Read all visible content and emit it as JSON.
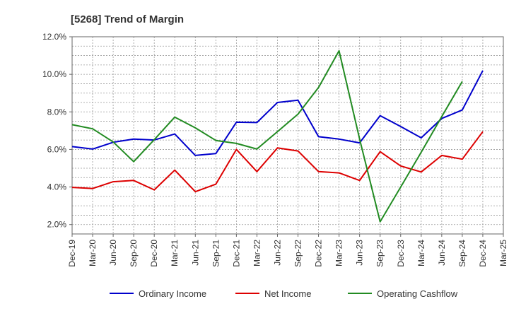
{
  "chart_data": {
    "type": "line",
    "title": "[5268]  Trend of Margin",
    "xlabel": "",
    "ylabel": "",
    "categories": [
      "Dec-19",
      "Mar-20",
      "Jun-20",
      "Sep-20",
      "Dec-20",
      "Mar-21",
      "Jun-21",
      "Sep-21",
      "Dec-21",
      "Mar-22",
      "Jun-22",
      "Sep-22",
      "Dec-22",
      "Mar-23",
      "Jun-23",
      "Sep-23",
      "Dec-23",
      "Mar-24",
      "Jun-24",
      "Sep-24",
      "Dec-24",
      "Mar-25"
    ],
    "ylim": [
      1.5,
      12.0
    ],
    "yticks": [
      2.0,
      4.0,
      6.0,
      8.0,
      10.0,
      12.0
    ],
    "ytick_labels": [
      "2.0%",
      "4.0%",
      "6.0%",
      "8.0%",
      "10.0%",
      "12.0%"
    ],
    "grid": true,
    "legend_position": "bottom",
    "series": [
      {
        "name": "Ordinary Income",
        "color": "#0000cc",
        "values": [
          6.15,
          6.02,
          6.38,
          6.55,
          6.5,
          6.82,
          5.68,
          5.78,
          7.45,
          7.43,
          8.5,
          8.62,
          6.68,
          6.55,
          6.35,
          7.8,
          7.22,
          6.62,
          7.65,
          8.1,
          10.2,
          null
        ]
      },
      {
        "name": "Net Income",
        "color": "#dd0000",
        "values": [
          3.98,
          3.92,
          4.28,
          4.35,
          3.85,
          4.9,
          3.75,
          4.15,
          6.0,
          4.82,
          6.08,
          5.92,
          4.82,
          4.75,
          4.35,
          5.88,
          5.12,
          4.8,
          5.68,
          5.48,
          6.95,
          null
        ]
      },
      {
        "name": "Operating Cashflow",
        "color": "#228b22",
        "values": [
          7.32,
          7.1,
          6.4,
          5.35,
          6.52,
          7.72,
          7.15,
          6.48,
          6.32,
          6.02,
          6.95,
          7.88,
          9.3,
          11.25,
          6.55,
          2.15,
          4.0,
          5.85,
          7.75,
          9.62,
          null,
          null
        ]
      }
    ]
  }
}
